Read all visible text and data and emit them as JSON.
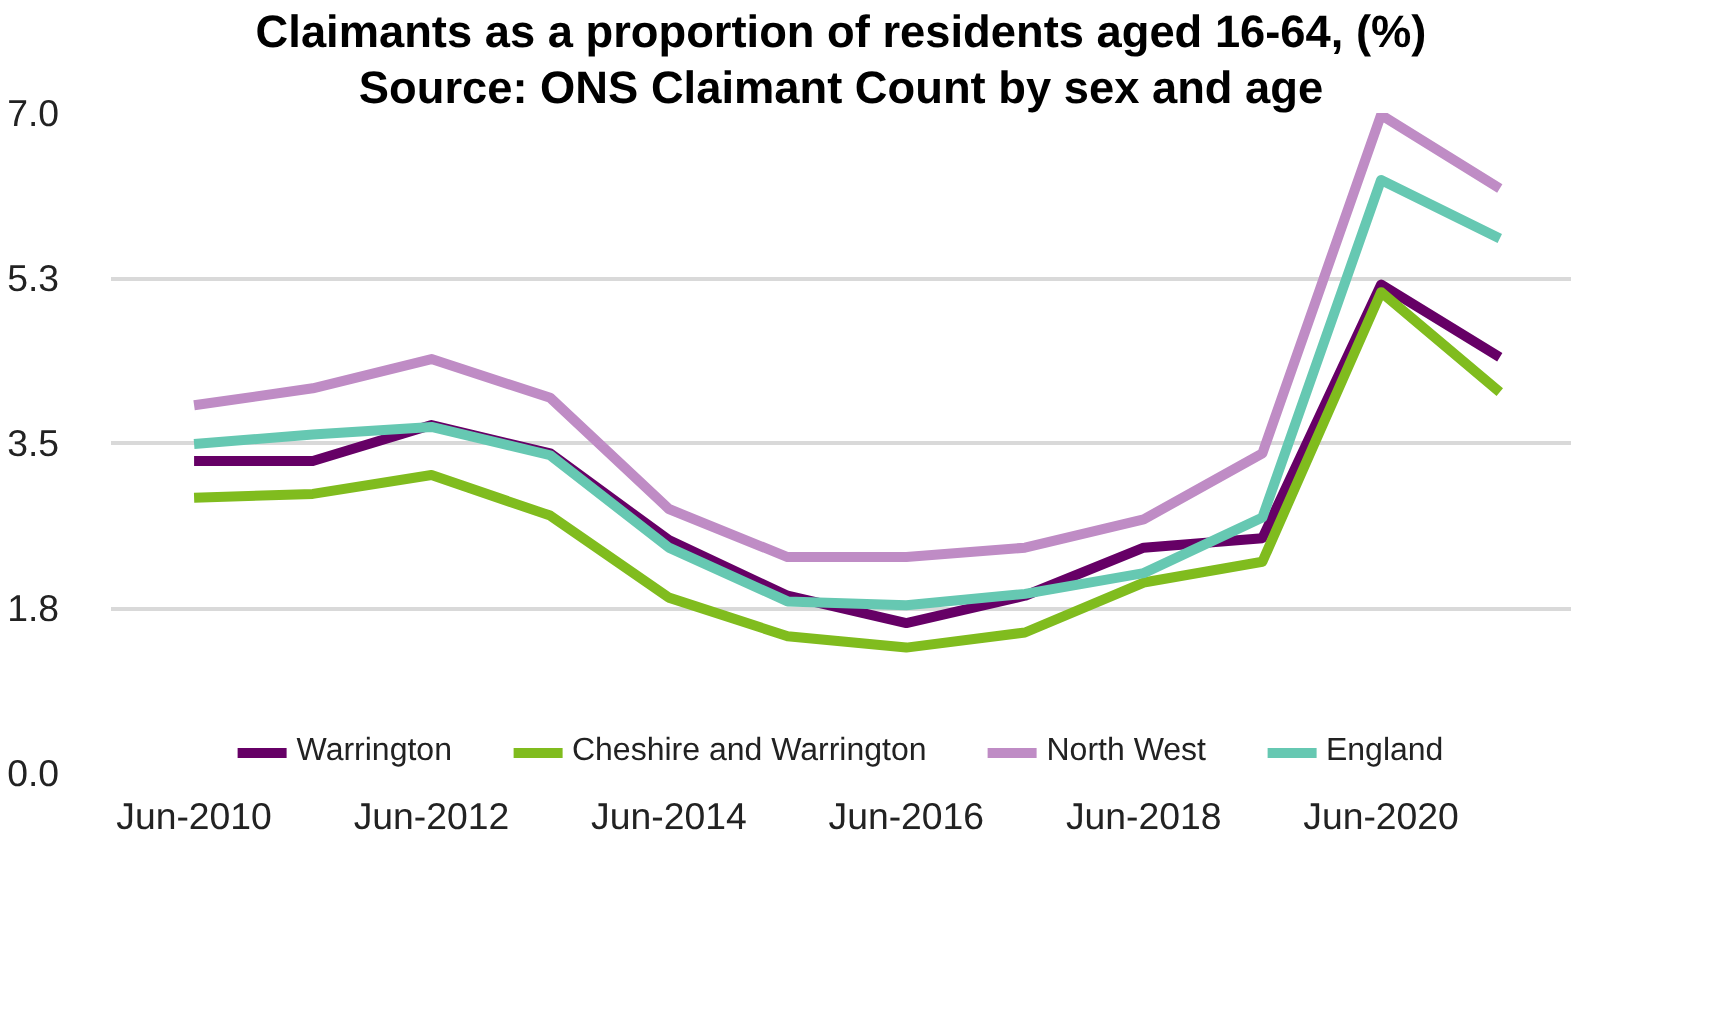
{
  "chart_data": {
    "type": "line",
    "title": "Claimants as a proportion of residents aged 16-64, (%)",
    "subtitle": "Source: ONS Claimant Count by sex and age",
    "categories": [
      "Jun-2010",
      null,
      "Jun-2012",
      null,
      "Jun-2014",
      null,
      "Jun-2016",
      null,
      "Jun-2018",
      null,
      "Jun-2020",
      null
    ],
    "series": [
      {
        "name": "Warrington",
        "color": "#660066",
        "values": [
          3.31,
          3.31,
          3.69,
          3.39,
          2.47,
          1.88,
          1.59,
          1.88,
          2.39,
          2.49,
          5.18,
          4.41
        ]
      },
      {
        "name": "Cheshire and Warrington",
        "color": "#80bc1e",
        "values": [
          2.92,
          2.96,
          3.16,
          2.73,
          1.86,
          1.45,
          1.33,
          1.49,
          2.02,
          2.24,
          5.1,
          4.04
        ]
      },
      {
        "name": "North West",
        "color": "#bf8cc5",
        "values": [
          3.9,
          4.08,
          4.39,
          3.98,
          2.8,
          2.29,
          2.29,
          2.39,
          2.69,
          3.39,
          6.98,
          6.2
        ]
      },
      {
        "name": "England",
        "color": "#66c8b2",
        "values": [
          3.49,
          3.59,
          3.67,
          3.37,
          2.39,
          1.82,
          1.78,
          1.9,
          2.12,
          2.71,
          6.29,
          5.67
        ]
      }
    ],
    "ylim": [
      0,
      7
    ],
    "yticks": [
      {
        "value": 0,
        "label": "0.0"
      },
      {
        "value": 1.75,
        "label": "1.8"
      },
      {
        "value": 3.5,
        "label": "3.5"
      },
      {
        "value": 5.25,
        "label": "5.3"
      },
      {
        "value": 7,
        "label": "7.0"
      }
    ],
    "grid": "y",
    "legend": "bottom",
    "marker": "none",
    "line_style": "solid"
  }
}
